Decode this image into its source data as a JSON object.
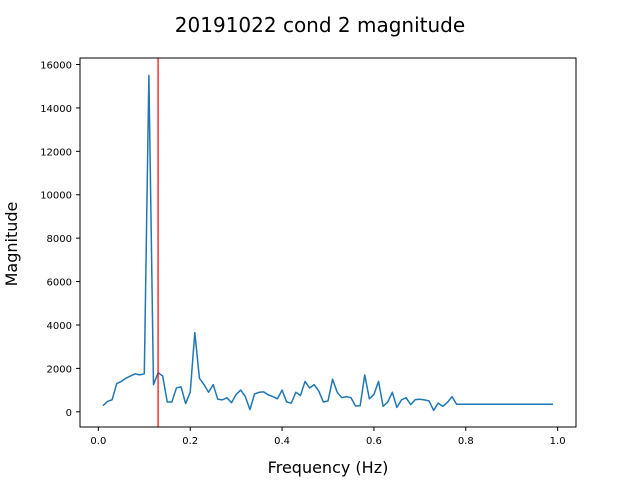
{
  "chart_data": {
    "type": "line",
    "title": "20191022 cond 2 magnitude",
    "xlabel": "Frequency (Hz)",
    "ylabel": "Magnitude",
    "xlim": [
      -0.04,
      1.04
    ],
    "ylim": [
      -700,
      16300
    ],
    "xticks": [
      0.0,
      0.2,
      0.4,
      0.6,
      0.8,
      1.0
    ],
    "xtick_labels": [
      "0.0",
      "0.2",
      "0.4",
      "0.6",
      "0.8",
      "1.0"
    ],
    "yticks": [
      0,
      2000,
      4000,
      6000,
      8000,
      10000,
      12000,
      14000,
      16000
    ],
    "ytick_labels": [
      "0",
      "2000",
      "4000",
      "6000",
      "8000",
      "10000",
      "12000",
      "14000",
      "16000"
    ],
    "grid": false,
    "vline": {
      "x": 0.13,
      "color": "#ff0000"
    },
    "series": [
      {
        "color": "#1f77b4",
        "x": [
          0.01,
          0.02,
          0.03,
          0.04,
          0.05,
          0.06,
          0.07,
          0.08,
          0.09,
          0.1,
          0.11,
          0.12,
          0.13,
          0.14,
          0.15,
          0.16,
          0.17,
          0.18,
          0.19,
          0.2,
          0.21,
          0.22,
          0.23,
          0.24,
          0.25,
          0.26,
          0.27,
          0.28,
          0.29,
          0.3,
          0.31,
          0.32,
          0.33,
          0.34,
          0.35,
          0.36,
          0.37,
          0.38,
          0.39,
          0.4,
          0.41,
          0.42,
          0.43,
          0.44,
          0.45,
          0.46,
          0.47,
          0.48,
          0.49,
          0.5,
          0.51,
          0.52,
          0.53,
          0.54,
          0.55,
          0.56,
          0.57,
          0.58,
          0.59,
          0.6,
          0.61,
          0.62,
          0.63,
          0.64,
          0.65,
          0.66,
          0.67,
          0.68,
          0.69,
          0.7,
          0.71,
          0.72,
          0.73,
          0.74,
          0.75,
          0.76,
          0.77,
          0.78,
          0.79,
          0.8,
          0.81,
          0.82,
          0.83,
          0.84,
          0.85,
          0.86,
          0.87,
          0.88,
          0.89,
          0.9,
          0.91,
          0.92,
          0.93,
          0.94,
          0.95,
          0.96,
          0.97,
          0.98,
          0.99
        ],
        "values": [
          280,
          480,
          560,
          1300,
          1400,
          1550,
          1650,
          1750,
          1700,
          1750,
          15500,
          1250,
          1800,
          1650,
          450,
          450,
          1100,
          1150,
          380,
          900,
          3650,
          1550,
          1250,
          900,
          1250,
          580,
          550,
          650,
          420,
          800,
          1000,
          700,
          100,
          820,
          900,
          920,
          780,
          700,
          600,
          1000,
          450,
          400,
          900,
          750,
          1400,
          1100,
          1250,
          950,
          450,
          500,
          1500,
          900,
          650,
          700,
          650,
          270,
          280,
          1700,
          600,
          800,
          1400,
          250,
          450,
          900,
          200,
          550,
          650,
          330,
          560,
          580,
          550,
          500,
          70,
          400,
          250,
          430,
          700,
          350,
          350,
          350,
          350,
          350,
          350,
          350,
          350,
          350,
          350,
          350,
          350,
          350,
          350,
          350,
          350,
          350,
          350,
          350,
          350,
          350,
          350
        ]
      }
    ]
  }
}
